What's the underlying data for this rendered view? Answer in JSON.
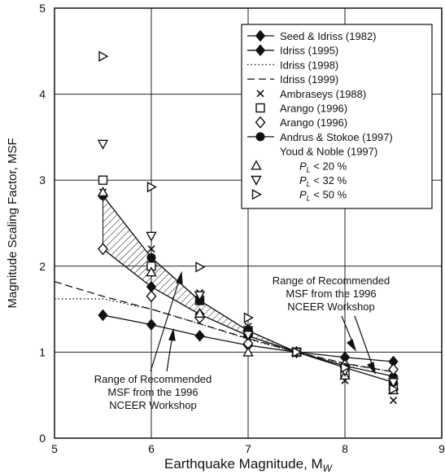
{
  "chart_data": {
    "type": "line",
    "xlabel": "Earthquake Magnitude, M",
    "xlabel_sub": "W",
    "ylabel": "Magnitude Scaling Factor, MSF",
    "xlim": [
      5,
      9
    ],
    "ylim": [
      0,
      5
    ],
    "xticks": [
      5,
      6,
      7,
      8,
      9
    ],
    "yticks": [
      0,
      1,
      2,
      3,
      4,
      5
    ],
    "grid": true,
    "legend_position": "top-right",
    "series": [
      {
        "name": "Seed & Idriss (1982)",
        "marker": "diamond-filled",
        "line": "solid",
        "x": [
          5.5,
          6,
          6.5,
          7,
          7.5,
          8,
          8.5
        ],
        "y": [
          1.43,
          1.32,
          1.19,
          1.08,
          1.0,
          0.94,
          0.89
        ]
      },
      {
        "name": "Idriss (1995)",
        "marker": "diamond-filled",
        "line": "solid",
        "x": [
          5.5,
          6,
          6.5,
          7,
          7.5,
          8,
          8.5
        ],
        "y": [
          2.2,
          1.76,
          1.44,
          1.19,
          1.0,
          0.84,
          0.72
        ]
      },
      {
        "name": "Idriss (1998)",
        "marker": "none",
        "line": "dotted",
        "x": [
          5,
          5.5,
          6,
          6.5,
          7,
          7.5,
          8,
          8.5
        ],
        "y": [
          1.62,
          1.62,
          1.5,
          1.33,
          1.15,
          1.0,
          0.86,
          0.77
        ]
      },
      {
        "name": "Idriss (1999)",
        "marker": "none",
        "line": "dashed",
        "x": [
          5,
          5.5,
          6,
          6.5,
          7,
          7.5,
          8,
          8.5
        ],
        "y": [
          1.82,
          1.65,
          1.5,
          1.33,
          1.16,
          1.0,
          0.87,
          0.77
        ]
      },
      {
        "name": "Ambraseys (1988)",
        "marker": "x",
        "line": "none",
        "x": [
          5.5,
          6,
          6.5,
          7,
          7.5,
          8,
          8.5
        ],
        "y": [
          2.86,
          2.2,
          1.69,
          1.3,
          1.0,
          0.67,
          0.44
        ]
      },
      {
        "name": "Arango (1996)",
        "marker": "square-open",
        "line": "none",
        "x": [
          5.5,
          6,
          6.5,
          7,
          7.5,
          8,
          8.5
        ],
        "y": [
          3.0,
          2.0,
          1.6,
          1.25,
          1.0,
          0.75,
          0.6
        ]
      },
      {
        "name": "Arango (1996)",
        "marker": "diamond-open",
        "line": "none",
        "x": [
          5.5,
          6,
          6.5,
          7,
          7.5,
          8,
          8.5
        ],
        "y": [
          2.2,
          1.65,
          1.4,
          1.1,
          1.0,
          0.85,
          0.8
        ]
      },
      {
        "name": "Andrus & Stokoe (1997)",
        "marker": "circle-filled",
        "line": "solid",
        "x": [
          5.5,
          6,
          6.5,
          7,
          7.5,
          8,
          8.5
        ],
        "y": [
          2.82,
          2.1,
          1.6,
          1.25,
          1.0,
          0.82,
          0.65
        ]
      },
      {
        "name": "P_L < 20 %",
        "marker": "triangle-up-open",
        "line": "none",
        "x": [
          5.5,
          6,
          6.5,
          7,
          7.5,
          8,
          8.5
        ],
        "y": [
          2.86,
          1.93,
          1.45,
          1.0,
          1.0,
          0.73,
          0.56
        ]
      },
      {
        "name": "P_L < 32 %",
        "marker": "triangle-down-open",
        "line": "none",
        "x": [
          5.5,
          6,
          6.5,
          7,
          7.5,
          8,
          8.5
        ],
        "y": [
          3.42,
          2.35,
          1.66,
          1.2,
          1.0,
          0.78,
          0.65
        ]
      },
      {
        "name": "P_L < 50 %",
        "marker": "triangle-right-open",
        "line": "none",
        "x": [
          5.5,
          6,
          6.5,
          7,
          7.5,
          8,
          8.5
        ],
        "y": [
          4.44,
          2.92,
          1.99,
          1.4,
          1.0,
          0.82,
          0.57
        ]
      }
    ],
    "shaded_band": {
      "x": [
        5.5,
        6,
        6.5,
        7,
        7.5
      ],
      "upper": [
        2.82,
        2.1,
        1.6,
        1.25,
        1.0
      ],
      "lower": [
        2.2,
        1.76,
        1.44,
        1.19,
        1.0
      ]
    },
    "legend_group_label": "Youd & Noble (1997)",
    "annotations": [
      {
        "lines": [
          "Range of Recommended",
          "MSF from the 1996",
          "NCEER Workshop"
        ],
        "italic_word": "MSF"
      },
      {
        "lines": [
          "Range of Recommended",
          "MSF from the 1996",
          "NCEER Workshop"
        ],
        "italic_word": "MSF"
      }
    ],
    "colors": {
      "ink": "#111111",
      "grid": "#222222",
      "background": "#ffffff"
    }
  }
}
